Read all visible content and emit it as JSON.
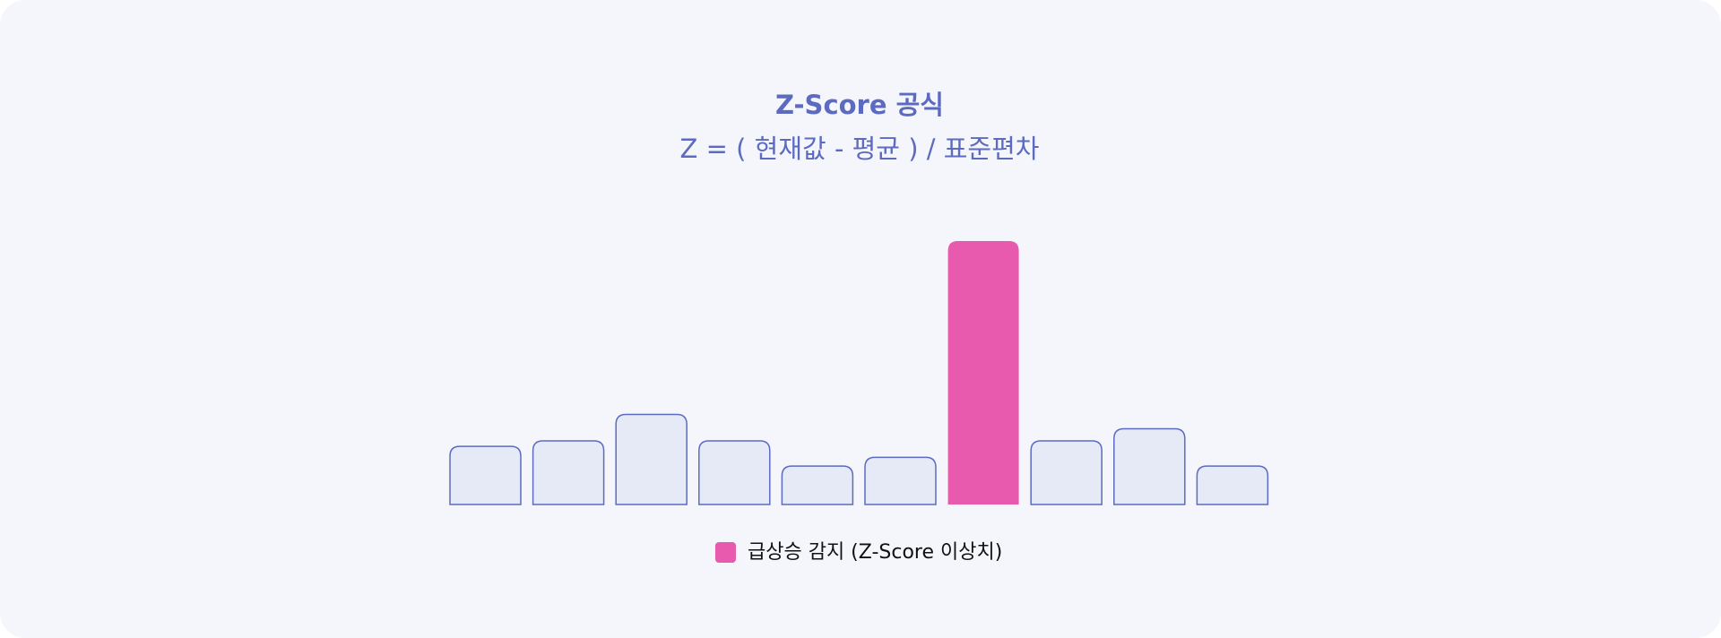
{
  "chart_data": {
    "type": "bar",
    "title": "Z-Score 공식",
    "subtitle": "Z = ( 현재값 - 평균 ) / 표준편차",
    "values": [
      53,
      58,
      82,
      58,
      35,
      43,
      240,
      58,
      69,
      35
    ],
    "colors": [
      "#e6e9f6",
      "#e6e9f6",
      "#e6e9f6",
      "#e6e9f6",
      "#e6e9f6",
      "#e6e9f6",
      "#e85aad",
      "#e6e9f6",
      "#e6e9f6",
      "#e6e9f6"
    ],
    "edge_color": "#5c6bc0",
    "legend": {
      "label": "급상승 감지 (Z-Score 이상치)",
      "color": "#e85aad"
    }
  }
}
